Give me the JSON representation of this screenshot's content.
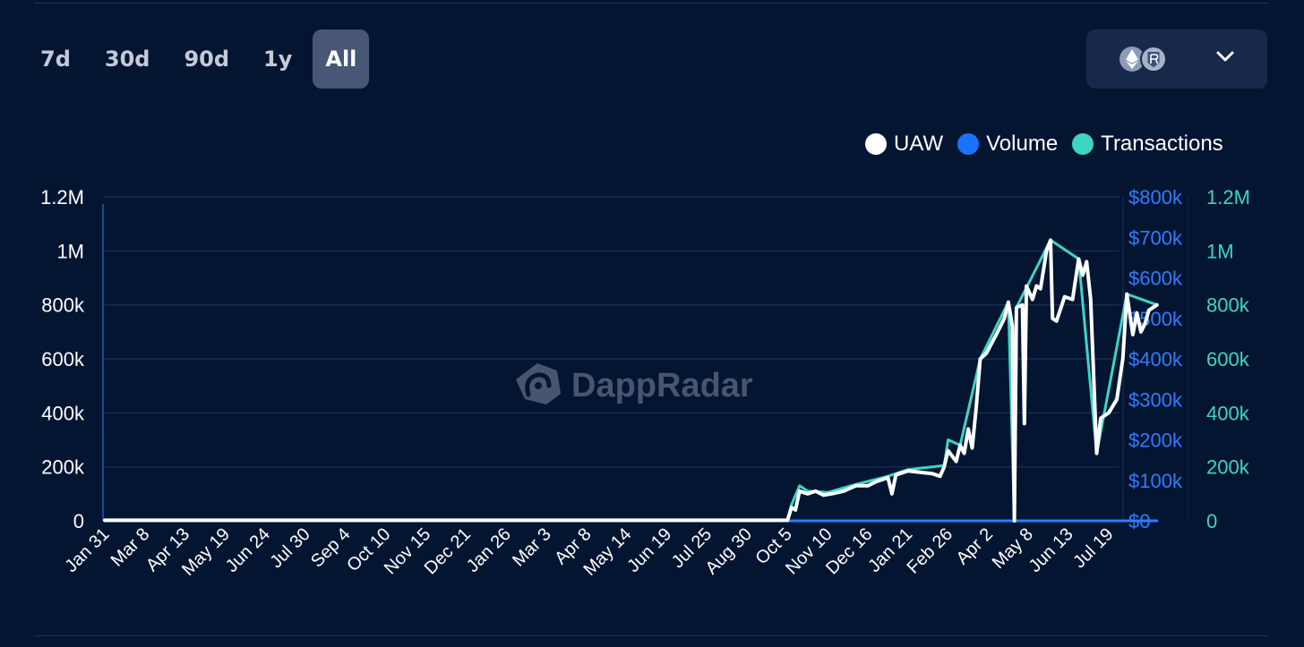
{
  "tabs": [
    {
      "label": "7d",
      "active": false
    },
    {
      "label": "30d",
      "active": false
    },
    {
      "label": "90d",
      "active": false
    },
    {
      "label": "1y",
      "active": false
    },
    {
      "label": "All",
      "active": true
    }
  ],
  "chain_selector": {
    "icons": [
      "ethereum-icon",
      "ronin-icon"
    ],
    "dropdown_icon": "chevron-down-icon"
  },
  "legend": [
    {
      "label": "UAW",
      "color": "#ffffff"
    },
    {
      "label": "Volume",
      "color": "#1a73ff"
    },
    {
      "label": "Transactions",
      "color": "#3dd6c0"
    }
  ],
  "watermark": "DappRadar",
  "colors": {
    "background": "#041532",
    "grid": "#1d3158",
    "uaw": "#ffffff",
    "volume": "#2e7dff",
    "transactions": "#3dd6c0"
  },
  "chart_data": {
    "type": "line",
    "x_labels": [
      "Jan 31",
      "Mar 8",
      "Apr 13",
      "May 19",
      "Jun 24",
      "Jul 30",
      "Sep 4",
      "Oct 10",
      "Nov 15",
      "Dec 21",
      "Jan 26",
      "Mar 3",
      "Apr 8",
      "May 14",
      "Jun 19",
      "Jul 25",
      "Aug 30",
      "Oct 5",
      "Nov 10",
      "Dec 16",
      "Jan 21",
      "Feb 26",
      "Apr 2",
      "May 8",
      "Jun 13",
      "Jul 19"
    ],
    "y_left": {
      "ticks": [
        "0",
        "200k",
        "400k",
        "600k",
        "800k",
        "1M",
        "1.2M"
      ],
      "range": [
        0,
        1200000
      ]
    },
    "y_right_volume": {
      "ticks": [
        "$0",
        "$100k",
        "$200k",
        "$300k",
        "$400k",
        "$500k",
        "$600k",
        "$700k",
        "$800k"
      ],
      "range": [
        0,
        800000
      ]
    },
    "y_right_transactions": {
      "ticks": [
        "0",
        "200k",
        "400k",
        "600k",
        "800k",
        "1M",
        "1.2M"
      ],
      "range": [
        0,
        1200000
      ]
    },
    "series": [
      {
        "name": "UAW",
        "axis": "left",
        "points": [
          [
            0,
            2000
          ],
          [
            17.0,
            2000
          ],
          [
            17.1,
            50000
          ],
          [
            17.2,
            40000
          ],
          [
            17.3,
            110000
          ],
          [
            17.5,
            100000
          ],
          [
            17.7,
            110000
          ],
          [
            17.9,
            95000
          ],
          [
            18.1,
            100000
          ],
          [
            18.4,
            110000
          ],
          [
            18.7,
            130000
          ],
          [
            19.0,
            130000
          ],
          [
            19.2,
            145000
          ],
          [
            19.5,
            160000
          ],
          [
            19.6,
            100000
          ],
          [
            19.7,
            170000
          ],
          [
            20.0,
            185000
          ],
          [
            20.3,
            180000
          ],
          [
            20.6,
            175000
          ],
          [
            20.8,
            165000
          ],
          [
            20.9,
            200000
          ],
          [
            21.0,
            260000
          ],
          [
            21.2,
            220000
          ],
          [
            21.3,
            280000
          ],
          [
            21.4,
            250000
          ],
          [
            21.5,
            340000
          ],
          [
            21.6,
            270000
          ],
          [
            21.7,
            420000
          ],
          [
            21.8,
            600000
          ],
          [
            21.95,
            620000
          ],
          [
            22.2,
            690000
          ],
          [
            22.4,
            750000
          ],
          [
            22.5,
            810000
          ],
          [
            22.6,
            720000
          ],
          [
            22.65,
            0
          ],
          [
            22.7,
            790000
          ],
          [
            22.85,
            800000
          ],
          [
            22.9,
            360000
          ],
          [
            22.95,
            870000
          ],
          [
            23.1,
            820000
          ],
          [
            23.2,
            870000
          ],
          [
            23.3,
            860000
          ],
          [
            23.45,
            1000000
          ],
          [
            23.55,
            1040000
          ],
          [
            23.6,
            750000
          ],
          [
            23.7,
            740000
          ],
          [
            23.9,
            830000
          ],
          [
            24.1,
            820000
          ],
          [
            24.25,
            970000
          ],
          [
            24.35,
            910000
          ],
          [
            24.45,
            960000
          ],
          [
            24.55,
            820000
          ],
          [
            24.7,
            250000
          ],
          [
            24.8,
            380000
          ],
          [
            25.0,
            400000
          ],
          [
            25.2,
            450000
          ],
          [
            25.35,
            600000
          ],
          [
            25.45,
            840000
          ],
          [
            25.6,
            690000
          ],
          [
            25.7,
            770000
          ],
          [
            25.8,
            700000
          ],
          [
            25.9,
            730000
          ],
          [
            26.0,
            780000
          ],
          [
            26.2,
            800000
          ]
        ]
      },
      {
        "name": "Volume",
        "axis": "right_volume",
        "points": [
          [
            0,
            0
          ],
          [
            26.2,
            0
          ]
        ]
      },
      {
        "name": "Transactions",
        "axis": "right_transactions",
        "points": [
          [
            0,
            3000
          ],
          [
            17.0,
            3000
          ],
          [
            17.1,
            60000
          ],
          [
            17.3,
            130000
          ],
          [
            17.5,
            110000
          ],
          [
            18.0,
            105000
          ],
          [
            18.7,
            135000
          ],
          [
            19.5,
            165000
          ],
          [
            20.0,
            190000
          ],
          [
            20.9,
            205000
          ],
          [
            21.0,
            300000
          ],
          [
            21.3,
            280000
          ],
          [
            21.8,
            600000
          ],
          [
            22.5,
            810000
          ],
          [
            22.65,
            0
          ],
          [
            22.7,
            790000
          ],
          [
            23.55,
            1040000
          ],
          [
            24.25,
            970000
          ],
          [
            24.7,
            250000
          ],
          [
            25.45,
            840000
          ],
          [
            26.2,
            800000
          ]
        ]
      }
    ]
  }
}
